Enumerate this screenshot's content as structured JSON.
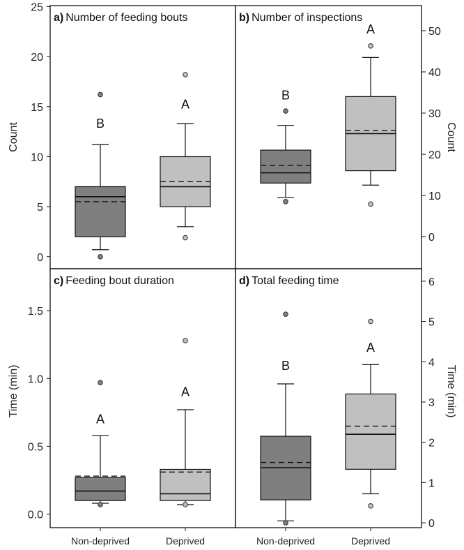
{
  "chart_data": {
    "type": "box",
    "categories": [
      "Non-deprived",
      "Deprived"
    ],
    "colors": {
      "Non-deprived": "#7f7f7f",
      "Deprived": "#c0c0c0"
    },
    "panels": [
      {
        "id": "a",
        "tag": "a)",
        "title": "Number of feeding bouts",
        "ylabel": "Count",
        "axis_side": "left",
        "ylim": [
          -1.2,
          25.1
        ],
        "ticks": [
          0,
          5,
          10,
          15,
          20,
          25
        ],
        "tick_labels": [
          "0",
          "5",
          "10",
          "15",
          "20",
          "25"
        ],
        "boxes": [
          {
            "category": "Non-deprived",
            "whisker_low": 0.7,
            "q1": 2,
            "median": 6,
            "mean": 5.5,
            "q3": 7,
            "whisker_high": 11.2,
            "outliers": [
              16.2,
              0
            ],
            "letter": "B",
            "letter_y": 12.9
          },
          {
            "category": "Deprived",
            "whisker_low": 3,
            "q1": 5,
            "median": 7,
            "mean": 7.5,
            "q3": 10,
            "whisker_high": 13.3,
            "outliers": [
              18.2,
              1.9
            ],
            "letter": "A",
            "letter_y": 14.8
          }
        ]
      },
      {
        "id": "b",
        "tag": "b)",
        "title": "Number of inspections",
        "ylabel": "Count",
        "axis_side": "right",
        "ylim": [
          -7.8,
          56.1
        ],
        "ticks": [
          0,
          10,
          20,
          30,
          40,
          50
        ],
        "tick_labels": [
          "0",
          "10",
          "20",
          "30",
          "40",
          "50"
        ],
        "boxes": [
          {
            "category": "Non-deprived",
            "whisker_low": 9.5,
            "q1": 13,
            "median": 15.5,
            "mean": 17.3,
            "q3": 21,
            "whisker_high": 27,
            "outliers": [
              30.5,
              8.5
            ],
            "letter": "B",
            "letter_y": 33.3
          },
          {
            "category": "Deprived",
            "whisker_low": 12.5,
            "q1": 16,
            "median": 25,
            "mean": 25.8,
            "q3": 34,
            "whisker_high": 43.5,
            "outliers": [
              46.3,
              7.9
            ],
            "letter": "A",
            "letter_y": 49.3
          }
        ]
      },
      {
        "id": "c",
        "tag": "c)",
        "title": "Feeding bout duration",
        "ylabel": "Time (min)",
        "axis_side": "left",
        "ylim": [
          -0.1,
          1.81
        ],
        "ticks": [
          0,
          0.5,
          1.0,
          1.5
        ],
        "tick_labels": [
          "0.0",
          "0.5",
          "1.0",
          "1.5"
        ],
        "boxes": [
          {
            "category": "Non-deprived",
            "whisker_low": 0.08,
            "q1": 0.1,
            "median": 0.17,
            "mean": 0.28,
            "q3": 0.27,
            "whisker_high": 0.58,
            "outliers": [
              0.97,
              0.07
            ],
            "letter": "A",
            "letter_y": 0.67
          },
          {
            "category": "Deprived",
            "whisker_low": 0.07,
            "q1": 0.1,
            "median": 0.15,
            "mean": 0.31,
            "q3": 0.33,
            "whisker_high": 0.77,
            "outliers": [
              1.28,
              0.07
            ],
            "letter": "A",
            "letter_y": 0.87
          }
        ]
      },
      {
        "id": "d",
        "tag": "d)",
        "title": "Total feeding time",
        "ylabel": "Time (min)",
        "axis_side": "right",
        "ylim": [
          -0.12,
          6.31
        ],
        "ticks": [
          0,
          1,
          2,
          3,
          4,
          5,
          6
        ],
        "tick_labels": [
          "0",
          "1",
          "2",
          "3",
          "4",
          "5",
          "6"
        ],
        "boxes": [
          {
            "category": "Non-deprived",
            "whisker_low": 0.05,
            "q1": 0.57,
            "median": 1.37,
            "mean": 1.5,
            "q3": 2.15,
            "whisker_high": 3.45,
            "outliers": [
              5.18,
              0
            ],
            "letter": "B",
            "letter_y": 3.8
          },
          {
            "category": "Deprived",
            "whisker_low": 0.72,
            "q1": 1.33,
            "median": 2.2,
            "mean": 2.4,
            "q3": 3.2,
            "whisker_high": 3.93,
            "outliers": [
              5.0,
              0.42
            ],
            "letter": "A",
            "letter_y": 4.25
          }
        ]
      }
    ]
  }
}
